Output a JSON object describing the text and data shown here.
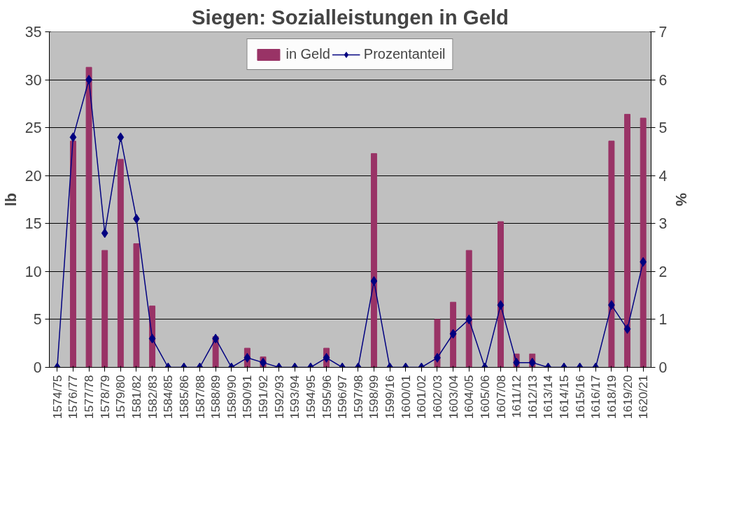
{
  "chart_data": {
    "type": "bar",
    "title": "Siegen: Sozialleistungen in Geld",
    "ylabel": "lb",
    "y2label": "%",
    "categories": [
      "1574/75",
      "1576/77",
      "1577/78",
      "1578/79",
      "1579/80",
      "1581/82",
      "1582/83",
      "1584/85",
      "1585/86",
      "1587/88",
      "1588/89",
      "1589/90",
      "1590/91",
      "1591/92",
      "1592/93",
      "1593/94",
      "1594/95",
      "1595/96",
      "1596/97",
      "1597/98",
      "1598/99",
      "1599/16",
      "1600/01",
      "1601/02",
      "1602/03",
      "1603/04",
      "1604/05",
      "1605/06",
      "1607/08",
      "1611/12",
      "1612/13",
      "1613/14",
      "1614/15",
      "1615/16",
      "1616/17",
      "1618/19",
      "1619/20",
      "1620/21"
    ],
    "series": [
      {
        "name": "in Geld",
        "color": "#993366",
        "values": [
          0,
          23.6,
          31.3,
          12.2,
          21.7,
          12.9,
          6.4,
          0,
          0,
          0,
          3.2,
          0,
          2.0,
          1.1,
          0,
          0,
          0,
          2.0,
          0,
          0,
          22.3,
          0,
          0,
          0,
          5.0,
          6.8,
          12.2,
          0,
          15.2,
          1.4,
          1.4,
          0,
          0,
          0,
          0,
          23.6,
          26.4,
          26.0
        ]
      },
      {
        "name": "Prozentanteil",
        "type": "line",
        "axis": "y2",
        "color": "#000080",
        "marker": "diamond",
        "values": [
          0,
          4.8,
          6.0,
          2.8,
          4.8,
          3.1,
          0.6,
          0,
          0,
          0,
          0.6,
          0,
          0.2,
          0.1,
          0,
          0,
          0,
          0.2,
          0,
          0,
          1.8,
          0,
          0,
          0,
          0.2,
          0.7,
          1.0,
          0,
          1.3,
          0.1,
          0.1,
          0,
          0,
          0,
          0,
          1.3,
          0.8,
          2.2
        ]
      }
    ],
    "ylim": [
      0,
      35
    ],
    "yticks": [
      0,
      5,
      10,
      15,
      20,
      25,
      30,
      35
    ],
    "y2lim": [
      0,
      7
    ],
    "y2ticks": [
      0,
      1,
      2,
      3,
      4,
      5,
      6,
      7
    ],
    "grid": "y",
    "legend": "top",
    "line_style": "solid"
  }
}
